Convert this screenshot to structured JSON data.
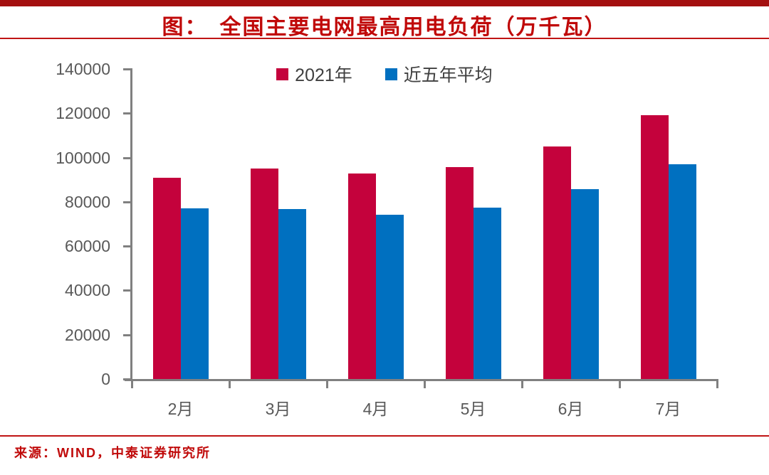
{
  "header": {
    "title": "图：　全国主要电网最高用电负荷（万千瓦）"
  },
  "footer": {
    "source": "来源：WIND，中泰证券研究所"
  },
  "colors": {
    "top_bar": "#a40f0f",
    "title_red": "#c00909",
    "rule_red": "#c01414",
    "axis_gray": "#808080",
    "tick_label_gray": "#595959",
    "legend_text": "#404040",
    "series_2021": "#c4023c",
    "series_avg": "#0070c0"
  },
  "chart_data": {
    "type": "bar",
    "title": "全国主要电网最高用电负荷（万千瓦）",
    "categories": [
      "2月",
      "3月",
      "4月",
      "5月",
      "6月",
      "7月"
    ],
    "series": [
      {
        "name": "2021年",
        "color": "#c4023c",
        "values": [
          91000,
          95000,
          92700,
          95600,
          105100,
          119200
        ]
      },
      {
        "name": "近五年平均",
        "color": "#0070c0",
        "values": [
          77000,
          76900,
          74300,
          77500,
          85700,
          97100
        ]
      }
    ],
    "ylim": [
      0,
      140000
    ],
    "yticks": [
      0,
      20000,
      40000,
      60000,
      80000,
      100000,
      120000,
      140000
    ],
    "grid": false,
    "legend_position": "top-center"
  }
}
